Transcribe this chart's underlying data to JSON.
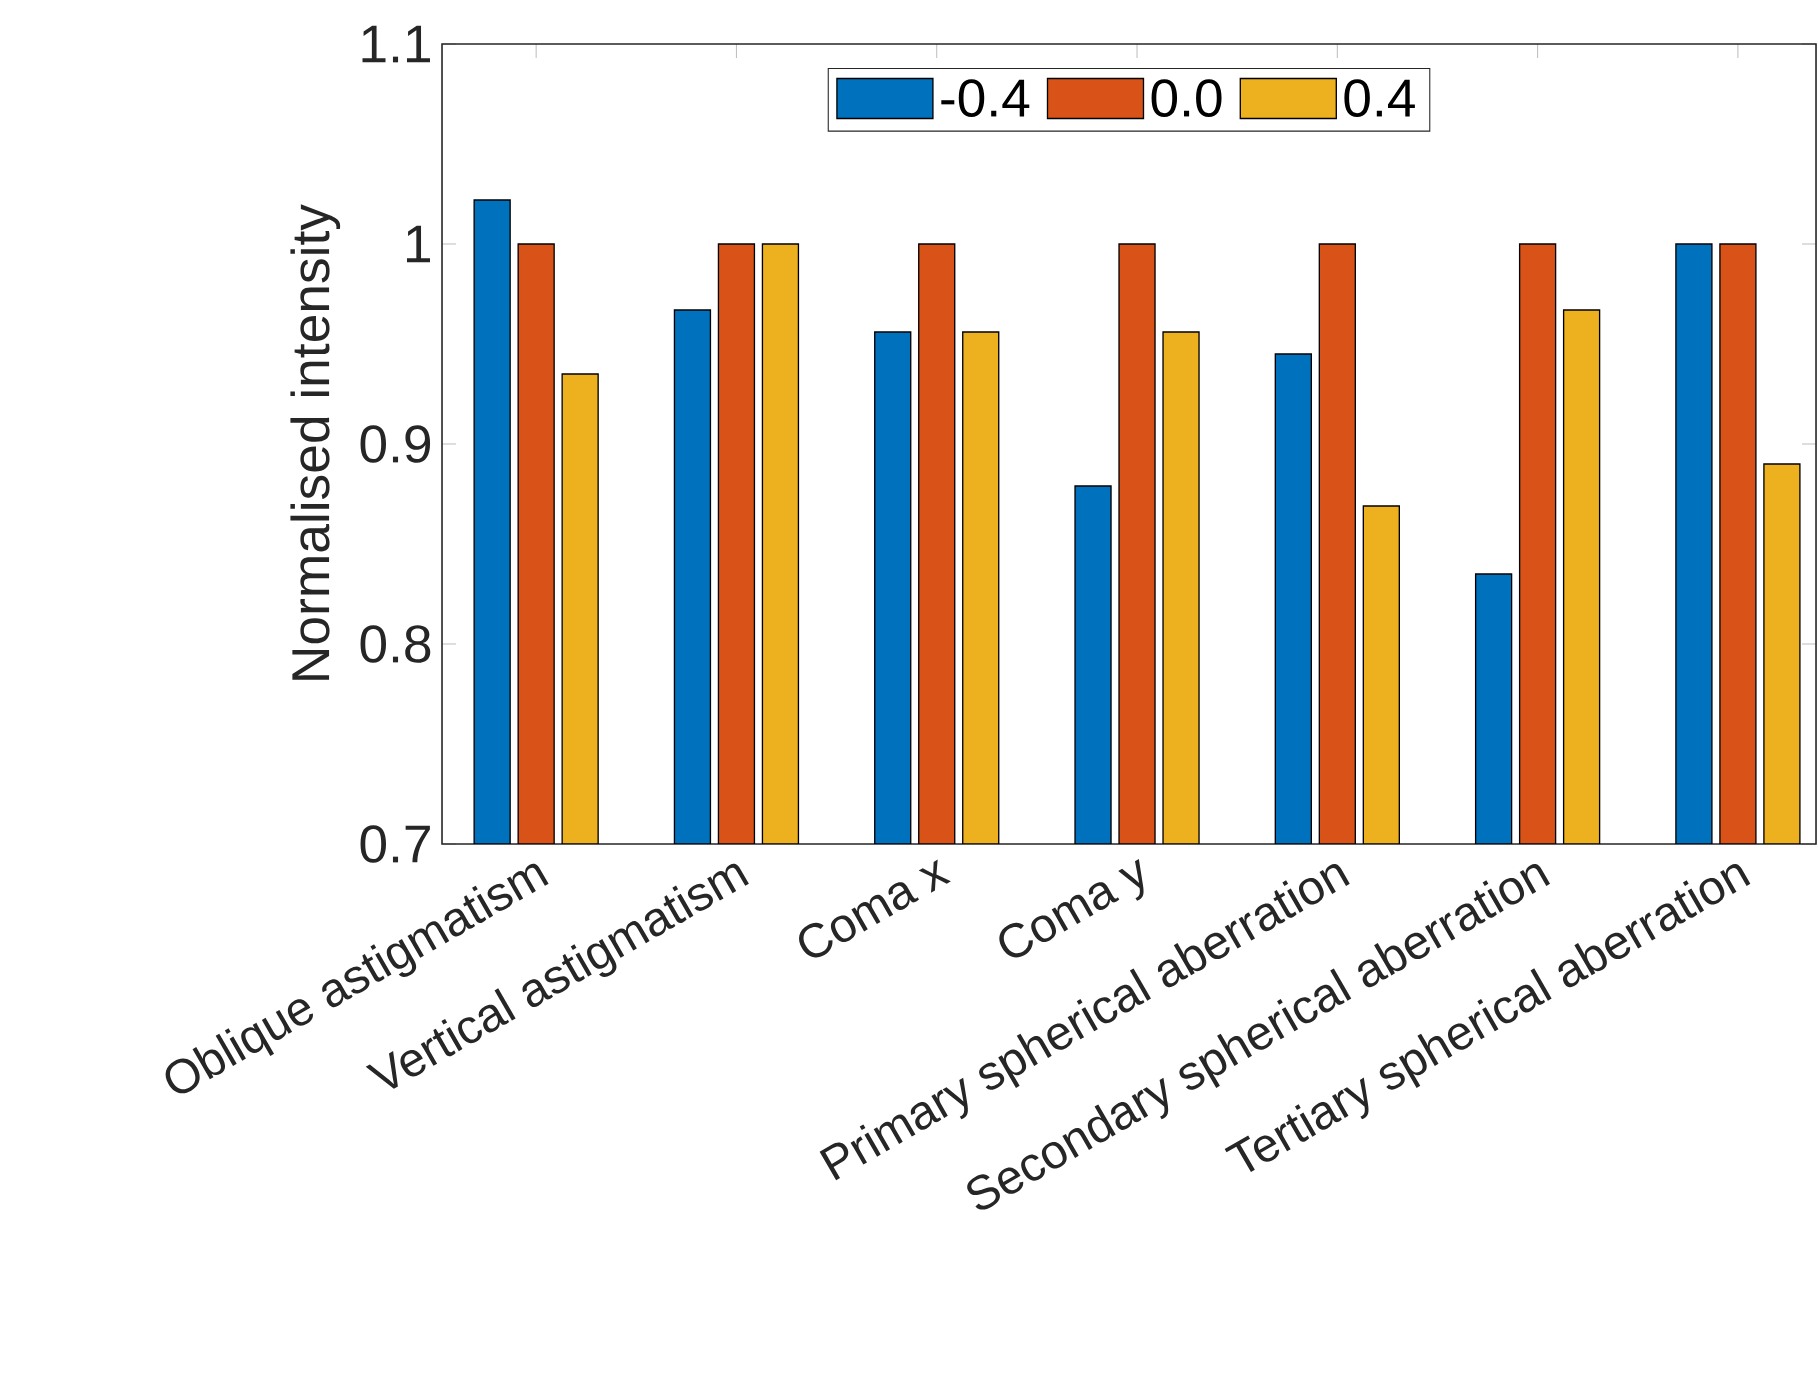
{
  "chart_data": {
    "type": "bar",
    "ylabel": "Normalised intensity",
    "categories": [
      "Oblique astigmatism",
      "Vertical astigmatism",
      "Coma x",
      "Coma y",
      "Primary spherical aberration",
      "Secondary spherical aberration",
      "Tertiary spherical aberration"
    ],
    "series": [
      {
        "name": "-0.4",
        "color": "#0072bd",
        "values": [
          1.022,
          0.967,
          0.956,
          0.879,
          0.945,
          0.835,
          1.0
        ]
      },
      {
        "name": "0.0",
        "color": "#d95319",
        "values": [
          1.0,
          1.0,
          1.0,
          1.0,
          1.0,
          1.0,
          1.0
        ]
      },
      {
        "name": "0.4",
        "color": "#edb120",
        "values": [
          0.935,
          1.0,
          0.956,
          0.956,
          0.869,
          0.967,
          0.89
        ]
      }
    ],
    "ylim": [
      0.7,
      1.1
    ],
    "yticks": [
      0.7,
      0.8,
      0.9,
      1,
      1.1
    ],
    "grid": false,
    "legend": "top"
  }
}
